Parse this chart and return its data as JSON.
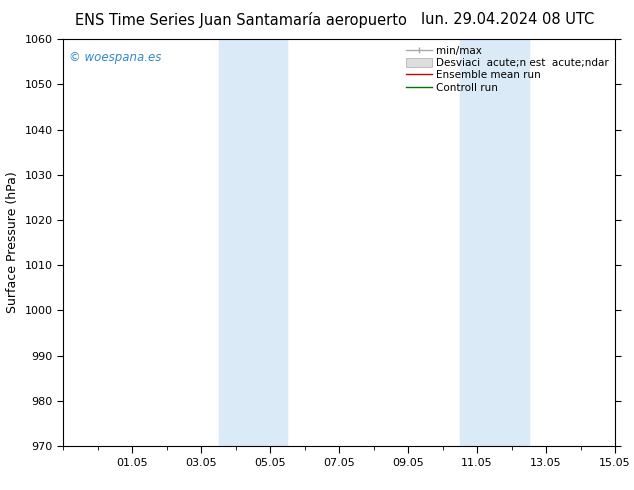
{
  "title_left": "ENS Time Series Juan Santamaría aeropuerto",
  "title_right": "lun. 29.04.2024 08 UTC",
  "ylabel": "Surface Pressure (hPa)",
  "ylim": [
    970,
    1060
  ],
  "yticks": [
    970,
    980,
    990,
    1000,
    1010,
    1020,
    1030,
    1040,
    1050,
    1060
  ],
  "xlim": [
    0,
    16
  ],
  "xtick_labels": [
    "01.05",
    "03.05",
    "05.05",
    "07.05",
    "09.05",
    "11.05",
    "13.05",
    "15.05"
  ],
  "xtick_positions": [
    2,
    4,
    6,
    8,
    10,
    12,
    14,
    16
  ],
  "shaded_bands": [
    {
      "xmin": 4.5,
      "xmax": 6.5
    },
    {
      "xmin": 11.5,
      "xmax": 13.5
    }
  ],
  "band_color": "#daeaf7",
  "background_color": "#ffffff",
  "watermark": "© woespana.es",
  "watermark_color": "#3388cc",
  "legend_labels": [
    "min/max",
    "Desviaci  acute;n est  acute;ndar",
    "Ensemble mean run",
    "Controll run"
  ],
  "legend_line_colors": [
    "#aaaaaa",
    "#cccccc",
    "#cc0000",
    "#007700"
  ],
  "title_fontsize": 10.5,
  "ylabel_fontsize": 9,
  "tick_fontsize": 8,
  "legend_fontsize": 7.5,
  "watermark_fontsize": 8.5
}
